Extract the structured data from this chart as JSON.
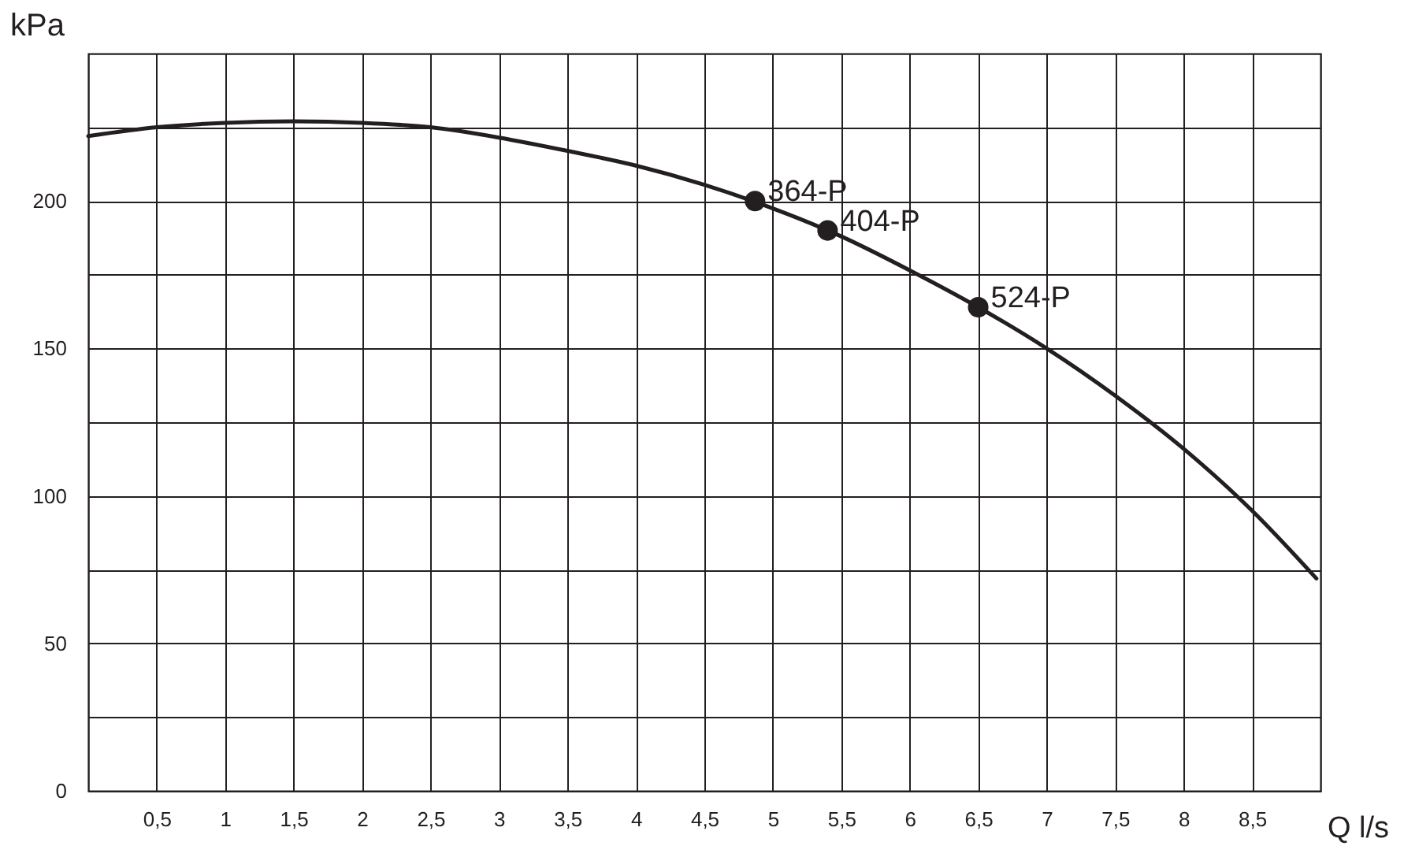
{
  "chart_data": {
    "type": "line",
    "xlabel": "Q l/s",
    "ylabel": "kPa",
    "xlim": [
      0,
      9
    ],
    "ylim": [
      0,
      250
    ],
    "xticks": [
      {
        "value": 0.5,
        "label": "0,5"
      },
      1,
      {
        "value": 1.5,
        "label": "1,5"
      },
      2,
      {
        "value": 2.5,
        "label": "2,5"
      },
      3,
      {
        "value": 3.5,
        "label": "3,5"
      },
      4,
      {
        "value": 4.5,
        "label": "4,5"
      },
      5,
      {
        "value": 5.5,
        "label": "5,5"
      },
      6,
      {
        "value": 6.5,
        "label": "6,5"
      },
      7,
      {
        "value": 7.5,
        "label": "7,5"
      },
      8,
      {
        "value": 8.5,
        "label": "8,5"
      }
    ],
    "yticks": [
      0,
      {
        "value": 25,
        "label": null
      },
      50,
      {
        "value": 75,
        "label": null
      },
      100,
      {
        "value": 125,
        "label": null
      },
      150,
      {
        "value": 175,
        "label": null
      },
      200,
      {
        "value": 225,
        "label": null
      }
    ],
    "grid": true,
    "series": [
      {
        "type": "line",
        "color": "#231f20",
        "x": [
          0,
          0.5,
          1,
          1.5,
          2,
          2.5,
          3,
          3.5,
          4,
          4.5,
          5,
          5.5,
          6,
          6.5,
          7,
          7.5,
          8,
          8.5,
          8.97
        ],
        "values": [
          222,
          225,
          226.5,
          227,
          226.5,
          225,
          221.5,
          217,
          212,
          205.5,
          197.5,
          188,
          176.5,
          164,
          150,
          134,
          116,
          95,
          72
        ]
      },
      {
        "type": "scatter",
        "color": "#231f20",
        "marker": "circle",
        "x": [
          4.87,
          5.4,
          6.5
        ],
        "values": [
          200,
          190,
          164
        ]
      }
    ],
    "annotations": [
      {
        "text": "364-P",
        "x": 4.87,
        "y": 200
      },
      {
        "text": "404-P",
        "x": 5.4,
        "y": 190
      },
      {
        "text": "524-P",
        "x": 6.5,
        "y": 164
      }
    ]
  }
}
